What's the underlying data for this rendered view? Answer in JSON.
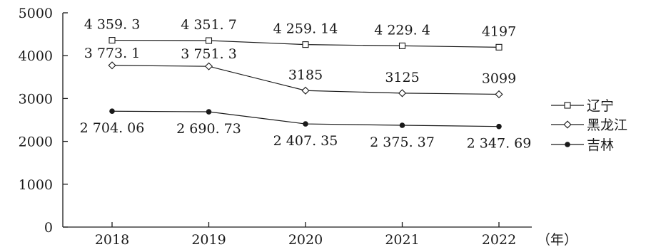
{
  "chart_data": {
    "type": "line",
    "categories": [
      "2018",
      "2019",
      "2020",
      "2021",
      "2022"
    ],
    "xunit": "（年）",
    "ylim": [
      0,
      5000
    ],
    "yticks": [
      0,
      1000,
      2000,
      3000,
      4000,
      5000
    ],
    "legend_position": "right",
    "series": [
      {
        "name": "辽宁",
        "marker": "square-open",
        "values": [
          4359.3,
          4351.7,
          4259.14,
          4229.4,
          4197
        ],
        "labels": [
          "4 359. 3",
          "4 351. 7",
          "4 259. 14",
          "4  229. 4",
          "4197"
        ]
      },
      {
        "name": "黑龙江",
        "marker": "diamond-open",
        "values": [
          3773.1,
          3751.3,
          3185,
          3125,
          3099
        ],
        "labels": [
          "3 773. 1",
          "3 751. 3",
          "3185",
          "3125",
          "3099"
        ]
      },
      {
        "name": "吉林",
        "marker": "circle-filled",
        "values": [
          2704.06,
          2690.73,
          2407.35,
          2375.37,
          2347.69
        ],
        "labels": [
          "2 704. 06",
          "2 690. 73",
          "2 407. 35",
          "2 375. 37",
          "2 347. 69"
        ]
      }
    ]
  }
}
